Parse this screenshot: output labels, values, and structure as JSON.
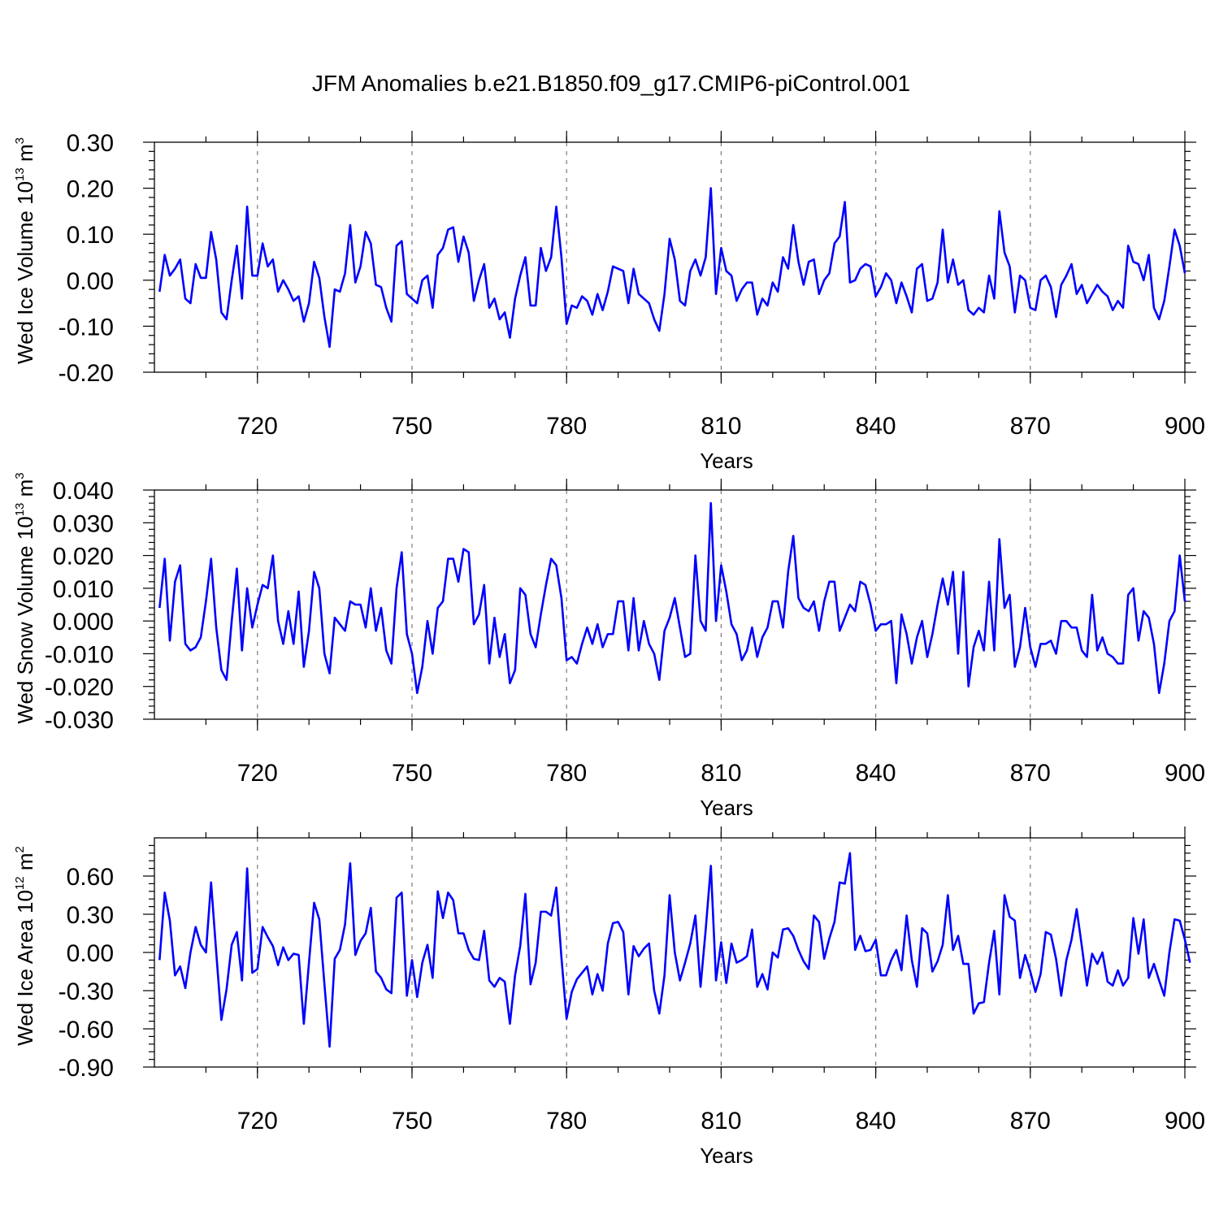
{
  "figure_title": "JFM Anomalies b.e21.B1850.f09_g17.CMIP6-piControl.001",
  "colors": {
    "line": "#0000ff",
    "grid": "#7a7a7a",
    "frame": "#000000"
  },
  "chart_data": [
    {
      "type": "line",
      "ylabel": "Wed Ice Volume 10",
      "ylabel_exp": "13",
      "ylabel_unit": "m",
      "ylabel_unit_exp": "3",
      "xlabel": "Years",
      "xlim": [
        700,
        900
      ],
      "ylim": [
        -0.2,
        0.3
      ],
      "xticks": [
        720,
        750,
        780,
        810,
        840,
        870,
        900
      ],
      "xtick_labels": [
        "720",
        "750",
        "780",
        "810",
        "840",
        "870",
        "900"
      ],
      "yticks": [
        -0.2,
        -0.1,
        0.0,
        0.1,
        0.2,
        0.3
      ],
      "ytick_labels": [
        "-0.20",
        "-0.10",
        "0.00",
        "0.10",
        "0.20",
        "0.30"
      ],
      "grid": "dashed vertical at major x ticks",
      "series": [
        {
          "name": "Wed Ice Volume",
          "x_start": 701,
          "x_step": 1,
          "values": [
            -0.025,
            0.055,
            0.01,
            0.025,
            0.045,
            -0.04,
            -0.05,
            0.035,
            0.005,
            0.005,
            0.105,
            0.045,
            -0.07,
            -0.085,
            0.0,
            0.075,
            -0.04,
            0.16,
            0.01,
            0.01,
            0.08,
            0.03,
            0.045,
            -0.025,
            0.0,
            -0.02,
            -0.045,
            -0.035,
            -0.09,
            -0.05,
            0.04,
            0.005,
            -0.08,
            -0.145,
            -0.02,
            -0.025,
            0.015,
            0.12,
            -0.005,
            0.03,
            0.105,
            0.08,
            -0.01,
            -0.015,
            -0.06,
            -0.09,
            0.075,
            0.085,
            -0.03,
            -0.04,
            -0.05,
            0.0,
            0.01,
            -0.06,
            0.055,
            0.07,
            0.11,
            0.115,
            0.04,
            0.095,
            0.06,
            -0.045,
            0.0,
            0.035,
            -0.06,
            -0.04,
            -0.085,
            -0.07,
            -0.125,
            -0.04,
            0.01,
            0.05,
            -0.055,
            -0.055,
            0.07,
            0.02,
            0.05,
            0.16,
            0.05,
            -0.095,
            -0.055,
            -0.06,
            -0.035,
            -0.045,
            -0.075,
            -0.03,
            -0.065,
            -0.025,
            0.03,
            0.025,
            0.02,
            -0.05,
            0.025,
            -0.03,
            -0.04,
            -0.05,
            -0.085,
            -0.11,
            -0.03,
            0.09,
            0.045,
            -0.045,
            -0.055,
            0.02,
            0.045,
            0.01,
            0.05,
            0.2,
            -0.03,
            0.07,
            0.02,
            0.01,
            -0.045,
            -0.02,
            -0.005,
            -0.005,
            -0.075,
            -0.04,
            -0.055,
            -0.005,
            -0.025,
            0.05,
            0.025,
            0.12,
            0.04,
            -0.01,
            0.04,
            0.045,
            -0.03,
            0.0,
            0.015,
            0.08,
            0.095,
            0.17,
            -0.005,
            0.0,
            0.025,
            0.035,
            0.03,
            -0.035,
            -0.015,
            0.015,
            0.0,
            -0.05,
            -0.005,
            -0.035,
            -0.07,
            0.025,
            0.035,
            -0.045,
            -0.04,
            -0.005,
            0.11,
            -0.005,
            0.045,
            -0.01,
            0.0,
            -0.065,
            -0.075,
            -0.06,
            -0.07,
            0.01,
            -0.04,
            0.15,
            0.06,
            0.03,
            -0.07,
            0.01,
            0.0,
            -0.06,
            -0.065,
            0.0,
            0.01,
            -0.015,
            -0.08,
            -0.01,
            0.01,
            0.035,
            -0.03,
            -0.01,
            -0.05,
            -0.03,
            -0.01,
            -0.025,
            -0.035,
            -0.065,
            -0.045,
            -0.06,
            0.075,
            0.04,
            0.035,
            0.0,
            0.055,
            -0.06,
            -0.085,
            -0.045,
            0.03,
            0.11,
            0.075,
            0.015
          ]
        }
      ]
    },
    {
      "type": "line",
      "ylabel": "Wed Snow Volume 10",
      "ylabel_exp": "13",
      "ylabel_unit": "m",
      "ylabel_unit_exp": "3",
      "xlabel": "Years",
      "xlim": [
        700,
        900
      ],
      "ylim": [
        -0.03,
        0.04
      ],
      "xticks": [
        720,
        750,
        780,
        810,
        840,
        870,
        900
      ],
      "xtick_labels": [
        "720",
        "750",
        "780",
        "810",
        "840",
        "870",
        "900"
      ],
      "yticks": [
        -0.03,
        -0.02,
        -0.01,
        0.0,
        0.01,
        0.02,
        0.03,
        0.04
      ],
      "ytick_labels": [
        "-0.030",
        "-0.020",
        "-0.010",
        "0.000",
        "0.010",
        "0.020",
        "0.030",
        "0.040"
      ],
      "grid": "dashed vertical at major x ticks",
      "series": [
        {
          "name": "Wed Snow Volume",
          "x_start": 701,
          "x_step": 1,
          "values": [
            0.004,
            0.019,
            -0.006,
            0.012,
            0.017,
            -0.007,
            -0.009,
            -0.008,
            -0.005,
            0.006,
            0.019,
            -0.002,
            -0.015,
            -0.018,
            0.0,
            0.016,
            -0.009,
            0.01,
            -0.002,
            0.005,
            0.011,
            0.01,
            0.02,
            0.0,
            -0.007,
            0.003,
            -0.007,
            0.009,
            -0.014,
            -0.003,
            0.015,
            0.01,
            -0.01,
            -0.016,
            0.001,
            -0.001,
            -0.003,
            0.006,
            0.005,
            0.005,
            -0.002,
            0.01,
            -0.003,
            0.004,
            -0.009,
            -0.013,
            0.01,
            0.021,
            -0.004,
            -0.01,
            -0.022,
            -0.014,
            0.0,
            -0.01,
            0.004,
            0.006,
            0.019,
            0.019,
            0.012,
            0.022,
            0.021,
            -0.001,
            0.002,
            0.011,
            -0.013,
            0.001,
            -0.011,
            -0.004,
            -0.019,
            -0.015,
            0.01,
            0.008,
            -0.004,
            -0.008,
            0.002,
            0.011,
            0.019,
            0.017,
            0.007,
            -0.012,
            -0.011,
            -0.013,
            -0.007,
            -0.002,
            -0.007,
            -0.001,
            -0.008,
            -0.004,
            -0.004,
            0.006,
            0.006,
            -0.009,
            0.007,
            -0.009,
            0.0,
            -0.007,
            -0.01,
            -0.018,
            -0.003,
            0.001,
            0.007,
            -0.002,
            -0.011,
            -0.01,
            0.02,
            0.0,
            -0.003,
            0.036,
            0.0,
            0.017,
            0.009,
            -0.001,
            -0.004,
            -0.012,
            -0.009,
            -0.002,
            -0.011,
            -0.005,
            -0.002,
            0.006,
            0.006,
            -0.002,
            0.015,
            0.026,
            0.007,
            0.004,
            0.003,
            0.006,
            -0.003,
            0.006,
            0.012,
            0.012,
            -0.003,
            0.001,
            0.005,
            0.003,
            0.012,
            0.011,
            0.005,
            -0.003,
            -0.001,
            -0.001,
            0.0,
            -0.019,
            0.002,
            -0.004,
            -0.013,
            -0.005,
            0.0,
            -0.011,
            -0.004,
            0.005,
            0.013,
            0.005,
            0.015,
            -0.01,
            0.015,
            -0.02,
            -0.008,
            -0.003,
            -0.009,
            0.012,
            -0.009,
            0.025,
            0.004,
            0.008,
            -0.014,
            -0.008,
            0.004,
            -0.008,
            -0.014,
            -0.007,
            -0.007,
            -0.006,
            -0.01,
            0.0,
            0.0,
            -0.002,
            -0.002,
            -0.009,
            -0.011,
            0.008,
            -0.009,
            -0.005,
            -0.01,
            -0.011,
            -0.013,
            -0.013,
            0.008,
            0.01,
            -0.006,
            0.003,
            0.001,
            -0.007,
            -0.022,
            -0.013,
            0.0,
            0.003,
            0.02,
            0.006
          ]
        }
      ]
    },
    {
      "type": "line",
      "ylabel": "Wed Ice Area 10",
      "ylabel_exp": "12",
      "ylabel_unit": "m",
      "ylabel_unit_exp": "2",
      "xlabel": "Years",
      "xlim": [
        700,
        900
      ],
      "ylim": [
        -0.9,
        0.9
      ],
      "xticks": [
        720,
        750,
        780,
        810,
        840,
        870,
        900
      ],
      "xtick_labels": [
        "720",
        "750",
        "780",
        "810",
        "840",
        "870",
        "900"
      ],
      "yticks": [
        -0.9,
        -0.6,
        -0.3,
        0.0,
        0.3,
        0.6
      ],
      "ytick_labels": [
        "-0.90",
        "-0.60",
        "-0.30",
        "0.00",
        "0.30",
        "0.60"
      ],
      "grid": "dashed vertical at major x ticks",
      "series": [
        {
          "name": "Wed Ice Area",
          "x_start": 701,
          "x_step": 1,
          "values": [
            -0.06,
            0.47,
            0.25,
            -0.18,
            -0.11,
            -0.28,
            0.0,
            0.2,
            0.06,
            0.0,
            0.55,
            0.0,
            -0.53,
            -0.29,
            0.06,
            0.16,
            -0.22,
            0.66,
            -0.16,
            -0.13,
            0.2,
            0.12,
            0.05,
            -0.1,
            0.04,
            -0.06,
            -0.01,
            -0.02,
            -0.56,
            -0.08,
            0.39,
            0.26,
            -0.25,
            -0.74,
            -0.05,
            0.02,
            0.22,
            0.7,
            -0.02,
            0.09,
            0.15,
            0.35,
            -0.15,
            -0.2,
            -0.29,
            -0.32,
            0.43,
            0.47,
            -0.34,
            -0.06,
            -0.35,
            -0.08,
            0.06,
            -0.2,
            0.48,
            0.27,
            0.47,
            0.41,
            0.15,
            0.15,
            0.02,
            -0.05,
            -0.06,
            0.17,
            -0.22,
            -0.27,
            -0.2,
            -0.23,
            -0.56,
            -0.18,
            0.05,
            0.46,
            -0.25,
            -0.08,
            0.32,
            0.32,
            0.29,
            0.51,
            -0.04,
            -0.52,
            -0.31,
            -0.21,
            -0.16,
            -0.11,
            -0.33,
            -0.17,
            -0.3,
            0.07,
            0.23,
            0.24,
            0.16,
            -0.33,
            0.05,
            -0.03,
            0.03,
            0.07,
            -0.3,
            -0.48,
            -0.18,
            0.45,
            0.0,
            -0.22,
            -0.08,
            0.07,
            0.29,
            -0.27,
            0.18,
            0.68,
            -0.22,
            0.08,
            -0.24,
            0.07,
            -0.08,
            -0.06,
            -0.03,
            0.18,
            -0.27,
            -0.17,
            -0.29,
            0.0,
            -0.04,
            0.18,
            0.19,
            0.13,
            0.02,
            -0.07,
            -0.13,
            0.29,
            0.24,
            -0.05,
            0.11,
            0.24,
            0.55,
            0.54,
            0.78,
            0.02,
            0.13,
            0.01,
            0.02,
            0.1,
            -0.18,
            -0.18,
            -0.06,
            0.02,
            -0.14,
            0.29,
            -0.06,
            -0.27,
            0.19,
            0.15,
            -0.15,
            -0.07,
            0.06,
            0.45,
            0.02,
            0.13,
            -0.09,
            -0.09,
            -0.48,
            -0.4,
            -0.39,
            -0.08,
            0.17,
            -0.33,
            0.45,
            0.28,
            0.25,
            -0.2,
            -0.02,
            -0.15,
            -0.31,
            -0.17,
            0.16,
            0.14,
            -0.05,
            -0.34,
            -0.06,
            0.1,
            0.34,
            0.05,
            -0.26,
            -0.01,
            -0.09,
            0.0,
            -0.23,
            -0.26,
            -0.14,
            -0.26,
            -0.2,
            0.27,
            -0.01,
            0.26,
            -0.2,
            -0.09,
            -0.22,
            -0.34,
            0.0,
            0.26,
            0.25,
            0.1,
            -0.08
          ]
        }
      ]
    }
  ]
}
